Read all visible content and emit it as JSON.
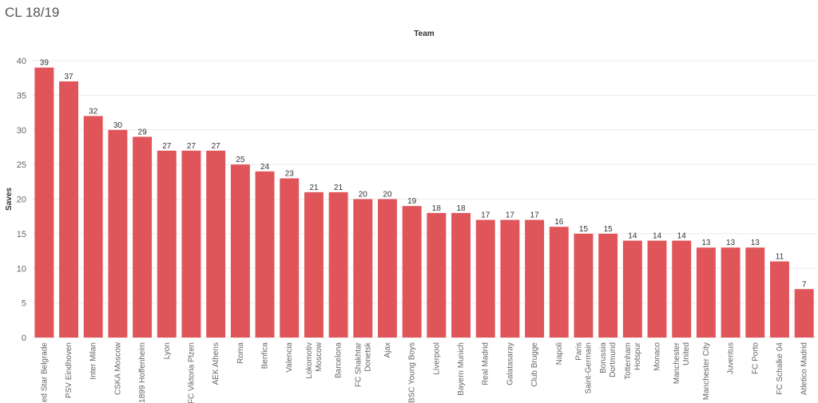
{
  "page_title": "CL 18/19",
  "chart_data": {
    "type": "bar",
    "xlabel": "Team",
    "ylabel": "Saves",
    "ylim": [
      0,
      40
    ],
    "yticks": [
      0,
      5,
      10,
      15,
      20,
      25,
      30,
      35,
      40
    ],
    "grid": true,
    "bar_color": "#e0555a",
    "categories": [
      [
        "Red Star Belgrade"
      ],
      [
        "PSV Eindhoven"
      ],
      [
        "Inter Milan"
      ],
      [
        "CSKA Moscow"
      ],
      [
        "1899 Hoffenheim"
      ],
      [
        "Lyon"
      ],
      [
        "FC Viktoria Plzen"
      ],
      [
        "AEK Athens"
      ],
      [
        "Roma"
      ],
      [
        "Benfica"
      ],
      [
        "Valencia"
      ],
      [
        "Lokomotiv",
        "Moscow"
      ],
      [
        "Barcelona"
      ],
      [
        "FC Shakhtar",
        "Donetsk"
      ],
      [
        "Ajax"
      ],
      [
        "BSC Young Boys"
      ],
      [
        "Liverpool"
      ],
      [
        "Bayern Munich"
      ],
      [
        "Real Madrid"
      ],
      [
        "Galatasaray"
      ],
      [
        "Club Brugge"
      ],
      [
        "Napoli"
      ],
      [
        "Paris",
        "Saint-Germain"
      ],
      [
        "Borussia",
        "Dortmund"
      ],
      [
        "Tottenham",
        "Hotspur"
      ],
      [
        "Monaco"
      ],
      [
        "Manchester",
        "United"
      ],
      [
        "Manchester City"
      ],
      [
        "Juventus"
      ],
      [
        "FC Porto"
      ],
      [
        "FC Schalke 04"
      ],
      [
        "Atletico Madrid"
      ]
    ],
    "values": [
      39,
      37,
      32,
      30,
      29,
      27,
      27,
      27,
      25,
      24,
      23,
      21,
      21,
      20,
      20,
      19,
      18,
      18,
      17,
      17,
      17,
      16,
      15,
      15,
      14,
      14,
      14,
      13,
      13,
      13,
      11,
      7
    ]
  }
}
